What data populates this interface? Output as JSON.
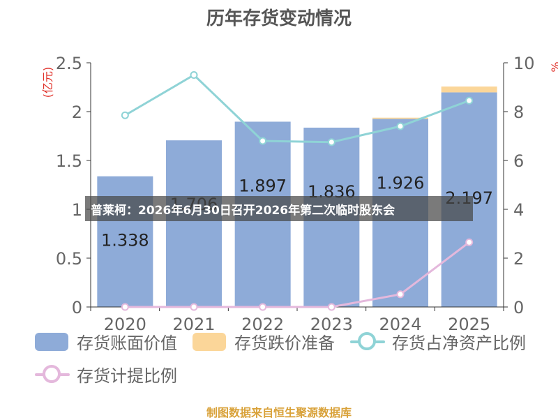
{
  "title": "历年存货变动情况",
  "overlay_text": "普莱柯：2026年6月30日召开2026年第二次临时股东会",
  "source": "制图数据来自恒生聚源数据库",
  "colors": {
    "book_value": "#8eabd8",
    "impairment": "#fbd699",
    "ratio_net_assets": "#8fd3d6",
    "ratio_provision": "#e4b8dc",
    "axis_label_red": "#e0312a"
  },
  "chart_data": {
    "type": "bar",
    "title": "历年存货变动情况",
    "categories": [
      "2020",
      "2021",
      "2022",
      "2023",
      "2024",
      "2025"
    ],
    "y_left": {
      "label": "(亿元)",
      "min": 0,
      "max": 2.5,
      "ticks": [
        "0",
        "0.5",
        "1",
        "1.5",
        "2",
        "2.5"
      ]
    },
    "y_right": {
      "label": "%",
      "min": 0,
      "max": 10,
      "ticks": [
        "0",
        "2",
        "4",
        "6",
        "8",
        "10"
      ]
    },
    "series": [
      {
        "name": "存货账面价值",
        "kind": "bar",
        "axis": "left",
        "values": [
          1.338,
          1.706,
          1.897,
          1.836,
          1.926,
          2.197
        ],
        "labels": [
          "1.338",
          "1.706",
          "1.897",
          "1.836",
          "1.926",
          "2.197"
        ]
      },
      {
        "name": "存货跌价准备",
        "kind": "bar-stacked",
        "axis": "left",
        "values": [
          0,
          0,
          0,
          0,
          0.012,
          0.06
        ]
      },
      {
        "name": "存货占净资产比例",
        "kind": "line",
        "axis": "right",
        "values": [
          7.85,
          9.5,
          6.8,
          6.75,
          7.4,
          8.45
        ]
      },
      {
        "name": "存货计提比例",
        "kind": "line",
        "axis": "right",
        "values": [
          0,
          0,
          0,
          0,
          0.52,
          2.65
        ]
      }
    ],
    "grid": false,
    "legend_position": "bottom"
  }
}
